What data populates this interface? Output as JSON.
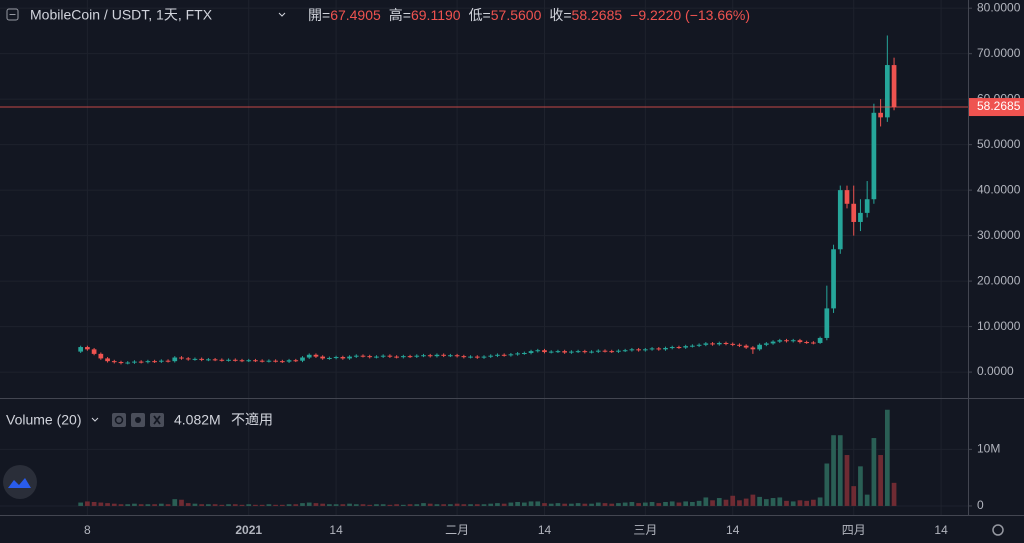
{
  "header": {
    "symbol": "MobileCoin / USDT, 1天, FTX",
    "ohlc": [
      {
        "label": "開=",
        "value": "67.4905"
      },
      {
        "label": "高=",
        "value": "69.1190"
      },
      {
        "label": "低=",
        "value": "57.5600"
      },
      {
        "label": "收=",
        "value": "58.2685"
      }
    ],
    "change": "−9.2220 (−13.66%)"
  },
  "volume_pane": {
    "title": "Volume (20)",
    "last_value_label": "4.082M",
    "note": "不適用"
  },
  "chart_data": {
    "type": "candlestick",
    "x": [
      0,
      1,
      2,
      3,
      4,
      5,
      6,
      7,
      8,
      9,
      10,
      11,
      12,
      13,
      14,
      15,
      16,
      17,
      18,
      19,
      20,
      21,
      22,
      23,
      24,
      25,
      26,
      27,
      28,
      29,
      30,
      31,
      32,
      33,
      34,
      35,
      36,
      37,
      38,
      39,
      40,
      41,
      42,
      43,
      44,
      45,
      46,
      47,
      48,
      49,
      50,
      51,
      52,
      53,
      54,
      55,
      56,
      57,
      58,
      59,
      60,
      61,
      62,
      63,
      64,
      65,
      66,
      67,
      68,
      69,
      70,
      71,
      72,
      73,
      74,
      75,
      76,
      77,
      78,
      79,
      80,
      81,
      82,
      83,
      84,
      85,
      86,
      87,
      88,
      89,
      90,
      91,
      92,
      93,
      94,
      95,
      96,
      97,
      98,
      99,
      100,
      101,
      102,
      103,
      104,
      105,
      106,
      107,
      108,
      109,
      110,
      111,
      112,
      113,
      114,
      115,
      116,
      117,
      118,
      119,
      120,
      121
    ],
    "open": [
      4.5,
      5.5,
      5.0,
      4.0,
      3.0,
      2.4,
      2.2,
      2.0,
      2.1,
      2.3,
      2.2,
      2.4,
      2.3,
      2.5,
      2.4,
      3.2,
      3.0,
      2.8,
      2.9,
      2.7,
      2.8,
      2.7,
      2.6,
      2.7,
      2.6,
      2.5,
      2.6,
      2.5,
      2.4,
      2.5,
      2.4,
      2.3,
      2.6,
      2.5,
      3.2,
      3.8,
      3.4,
      3.0,
      3.1,
      3.3,
      3.0,
      3.4,
      3.6,
      3.5,
      3.3,
      3.4,
      3.6,
      3.4,
      3.3,
      3.5,
      3.4,
      3.6,
      3.7,
      3.5,
      3.8,
      3.6,
      3.7,
      3.5,
      3.3,
      3.4,
      3.2,
      3.4,
      3.6,
      3.8,
      3.7,
      3.9,
      4.1,
      4.2,
      4.6,
      4.8,
      4.4,
      4.5,
      4.6,
      4.3,
      4.5,
      4.6,
      4.4,
      4.5,
      4.7,
      4.6,
      4.5,
      4.7,
      4.8,
      5.0,
      4.8,
      5.0,
      5.2,
      5.0,
      5.3,
      5.5,
      5.4,
      5.7,
      5.8,
      6.0,
      6.3,
      6.1,
      6.4,
      6.2,
      6.0,
      5.8,
      5.4,
      5.0,
      6.0,
      6.3,
      6.7,
      7.0,
      6.8,
      7.0,
      6.6,
      6.5,
      6.4,
      7.5,
      14,
      27,
      40,
      37,
      33,
      35,
      38,
      57,
      56,
      67.4905
    ],
    "high": [
      5.8,
      5.8,
      5.3,
      4.3,
      3.3,
      2.7,
      2.5,
      2.4,
      2.6,
      2.6,
      2.7,
      2.7,
      2.8,
      2.8,
      3.5,
      3.5,
      3.3,
      3.2,
      3.2,
      3.1,
      3.1,
      3.0,
      3.0,
      3.0,
      2.9,
      2.9,
      2.9,
      2.8,
      2.8,
      2.8,
      2.7,
      2.9,
      2.9,
      3.5,
      4.1,
      4.1,
      3.7,
      3.4,
      3.6,
      3.6,
      3.7,
      3.9,
      3.9,
      3.8,
      3.7,
      3.9,
      3.9,
      3.7,
      3.8,
      3.8,
      3.9,
      4.0,
      4.0,
      4.1,
      4.1,
      4.0,
      4.0,
      3.8,
      3.7,
      3.7,
      3.7,
      3.9,
      4.1,
      4.1,
      4.2,
      4.4,
      4.5,
      4.9,
      5.1,
      5.1,
      4.8,
      4.9,
      4.9,
      4.8,
      4.9,
      4.9,
      4.8,
      5.0,
      5.0,
      4.9,
      5.0,
      5.1,
      5.3,
      5.3,
      5.3,
      5.5,
      5.5,
      5.6,
      5.8,
      5.8,
      6.0,
      6.1,
      6.3,
      6.6,
      6.6,
      6.7,
      6.7,
      6.5,
      6.3,
      6.1,
      5.7,
      6.3,
      6.6,
      7.0,
      7.3,
      7.3,
      7.3,
      7.3,
      6.9,
      6.8,
      7.8,
      19,
      28,
      41,
      41,
      41,
      38,
      42,
      59,
      60,
      74,
      69.119
    ],
    "low": [
      4.2,
      4.7,
      3.7,
      2.7,
      2.1,
      1.9,
      1.7,
      1.7,
      1.8,
      1.9,
      1.9,
      2.0,
      2.0,
      2.1,
      2.1,
      2.7,
      2.5,
      2.5,
      2.4,
      2.4,
      2.4,
      2.3,
      2.3,
      2.3,
      2.2,
      2.2,
      2.2,
      2.1,
      2.1,
      2.1,
      2.0,
      2.0,
      2.2,
      2.2,
      2.9,
      3.1,
      2.7,
      2.7,
      2.8,
      2.7,
      2.7,
      3.1,
      3.2,
      3.0,
      3.0,
      3.1,
      3.1,
      3.0,
      3.0,
      3.1,
      3.1,
      3.3,
      3.2,
      3.2,
      3.3,
      3.3,
      3.2,
      3.0,
      3.0,
      2.9,
      2.9,
      3.1,
      3.3,
      3.4,
      3.4,
      3.6,
      3.8,
      3.9,
      4.3,
      4.1,
      4.1,
      4.2,
      4.0,
      4.0,
      4.2,
      4.1,
      4.1,
      4.2,
      4.3,
      4.2,
      4.2,
      4.4,
      4.5,
      4.5,
      4.5,
      4.7,
      4.7,
      4.7,
      5.0,
      5.1,
      5.1,
      5.4,
      5.5,
      5.7,
      5.8,
      5.8,
      5.9,
      5.7,
      5.5,
      5.1,
      4.0,
      4.7,
      5.7,
      6.0,
      6.4,
      6.5,
      6.5,
      6.3,
      6.2,
      6.1,
      6.2,
      7,
      13,
      26,
      36,
      30,
      31,
      34,
      37,
      54,
      55,
      57.56
    ],
    "close": [
      5.5,
      5.0,
      4.0,
      3.0,
      2.4,
      2.2,
      2.0,
      2.1,
      2.3,
      2.2,
      2.4,
      2.3,
      2.5,
      2.4,
      3.2,
      3.0,
      2.8,
      2.9,
      2.7,
      2.8,
      2.7,
      2.6,
      2.7,
      2.6,
      2.5,
      2.6,
      2.5,
      2.4,
      2.5,
      2.4,
      2.3,
      2.6,
      2.5,
      3.2,
      3.8,
      3.4,
      3.0,
      3.1,
      3.3,
      3.0,
      3.4,
      3.6,
      3.5,
      3.3,
      3.4,
      3.6,
      3.4,
      3.3,
      3.5,
      3.4,
      3.6,
      3.7,
      3.5,
      3.8,
      3.6,
      3.7,
      3.5,
      3.3,
      3.4,
      3.2,
      3.4,
      3.6,
      3.8,
      3.7,
      3.9,
      4.1,
      4.2,
      4.6,
      4.8,
      4.4,
      4.5,
      4.6,
      4.3,
      4.5,
      4.6,
      4.4,
      4.5,
      4.7,
      4.6,
      4.5,
      4.7,
      4.8,
      5.0,
      4.8,
      5.0,
      5.2,
      5.0,
      5.3,
      5.5,
      5.4,
      5.7,
      5.8,
      6.0,
      6.3,
      6.1,
      6.4,
      6.2,
      6.0,
      5.8,
      5.4,
      5.0,
      6.0,
      6.3,
      6.7,
      7.0,
      6.8,
      7.0,
      6.6,
      6.5,
      6.4,
      7.5,
      14,
      27,
      40,
      37,
      33,
      35,
      38,
      57,
      56,
      67.5,
      58.2685
    ],
    "volume": [
      0.6,
      0.8,
      0.7,
      0.6,
      0.5,
      0.4,
      0.3,
      0.3,
      0.4,
      0.3,
      0.3,
      0.3,
      0.4,
      0.3,
      1.2,
      1.1,
      0.5,
      0.4,
      0.3,
      0.3,
      0.3,
      0.2,
      0.3,
      0.3,
      0.2,
      0.3,
      0.2,
      0.2,
      0.3,
      0.2,
      0.2,
      0.3,
      0.3,
      0.5,
      0.6,
      0.5,
      0.4,
      0.3,
      0.3,
      0.3,
      0.4,
      0.3,
      0.3,
      0.2,
      0.3,
      0.3,
      0.2,
      0.3,
      0.2,
      0.3,
      0.3,
      0.5,
      0.4,
      0.3,
      0.3,
      0.3,
      0.4,
      0.3,
      0.3,
      0.3,
      0.3,
      0.4,
      0.5,
      0.4,
      0.6,
      0.7,
      0.6,
      0.8,
      0.8,
      0.5,
      0.4,
      0.5,
      0.4,
      0.4,
      0.5,
      0.4,
      0.4,
      0.6,
      0.5,
      0.4,
      0.5,
      0.6,
      0.7,
      0.5,
      0.6,
      0.7,
      0.5,
      0.7,
      0.8,
      0.6,
      0.8,
      0.7,
      0.9,
      1.5,
      1.0,
      1.4,
      1.1,
      1.8,
      1.0,
      1.3,
      2.0,
      1.6,
      1.2,
      1.4,
      1.5,
      0.9,
      0.8,
      1.0,
      0.9,
      1.1,
      1.5,
      7.5,
      12.5,
      12.5,
      9,
      3.5,
      7,
      2,
      12,
      9,
      17,
      4.082
    ],
    "xlim": [
      -12,
      132
    ],
    "xticks": [
      {
        "value": 1,
        "label": "8"
      },
      {
        "value": 25,
        "label": "2021"
      },
      {
        "value": 38,
        "label": "14"
      },
      {
        "value": 56,
        "label": "二月"
      },
      {
        "value": 69,
        "label": "14"
      },
      {
        "value": 84,
        "label": "三月"
      },
      {
        "value": 97,
        "label": "14"
      },
      {
        "value": 115,
        "label": "四月"
      },
      {
        "value": 128,
        "label": "14"
      }
    ],
    "ylim": [
      -5.7,
      81.8
    ],
    "yticks": [
      {
        "value": 0,
        "label": "0.0000"
      },
      {
        "value": 10,
        "label": "10.0000"
      },
      {
        "value": 20,
        "label": "20.0000"
      },
      {
        "value": 30,
        "label": "30.0000"
      },
      {
        "value": 40,
        "label": "40.0000"
      },
      {
        "value": 50,
        "label": "50.0000"
      },
      {
        "value": 60,
        "label": "60.0000"
      },
      {
        "value": 70,
        "label": "70.0000"
      },
      {
        "value": 80,
        "label": "80.0000"
      }
    ],
    "volume_ylim": [
      -1.6,
      18.9
    ],
    "volume_ticks": [
      0,
      {
        "value": 10,
        "label": "10M"
      }
    ],
    "grid": true,
    "up_color": "#26a69a",
    "down_color": "#ef5350",
    "volume_up_color": "#2a5f55",
    "volume_down_color": "#6f2b33"
  }
}
